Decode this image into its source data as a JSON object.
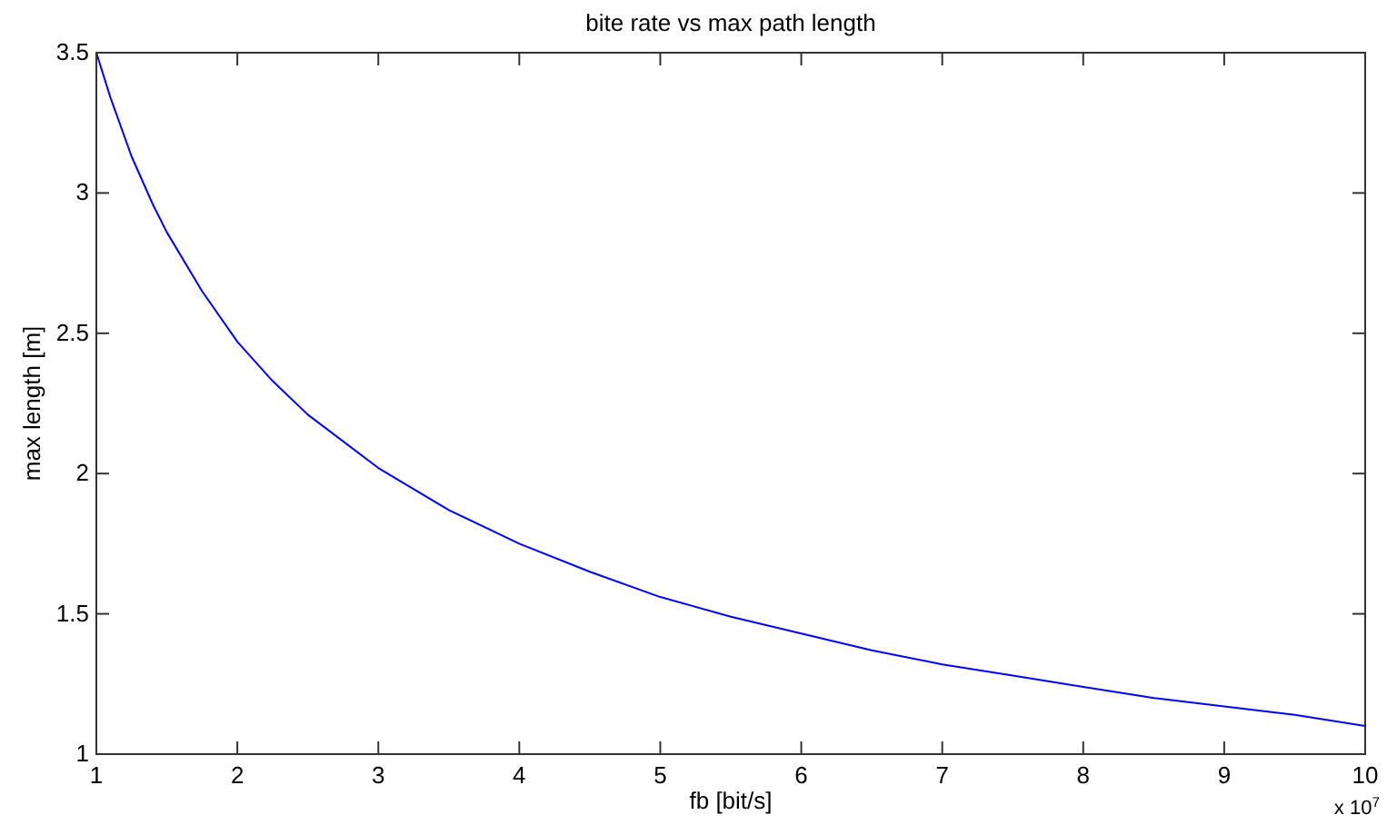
{
  "chart_data": {
    "type": "line",
    "title": "bite rate vs max path length",
    "xlabel": "fb [bit/s]",
    "ylabel": "max length [m]",
    "x": [
      1,
      1.1,
      1.25,
      1.4,
      1.5,
      1.75,
      2,
      2.25,
      2.5,
      3,
      3.5,
      4,
      4.5,
      5,
      5.5,
      6,
      6.5,
      7,
      7.5,
      8,
      8.5,
      9,
      9.5,
      10
    ],
    "series": [
      {
        "color": "#0000ff",
        "values": [
          3.5,
          3.34,
          3.13,
          2.96,
          2.86,
          2.65,
          2.47,
          2.33,
          2.21,
          2.02,
          1.87,
          1.75,
          1.65,
          1.56,
          1.49,
          1.43,
          1.37,
          1.32,
          1.28,
          1.24,
          1.2,
          1.17,
          1.14,
          1.1
        ]
      }
    ],
    "xlim": [
      1,
      10
    ],
    "xticks": [
      1,
      2,
      3,
      4,
      5,
      6,
      7,
      8,
      9,
      10
    ],
    "ylim": [
      1,
      3.5
    ],
    "yticks": [
      1,
      1.5,
      2,
      2.5,
      3,
      3.5
    ],
    "grid": false,
    "marker": "none",
    "line_style": "solid",
    "annotations": [
      "x 10$^{7}$"
    ]
  }
}
